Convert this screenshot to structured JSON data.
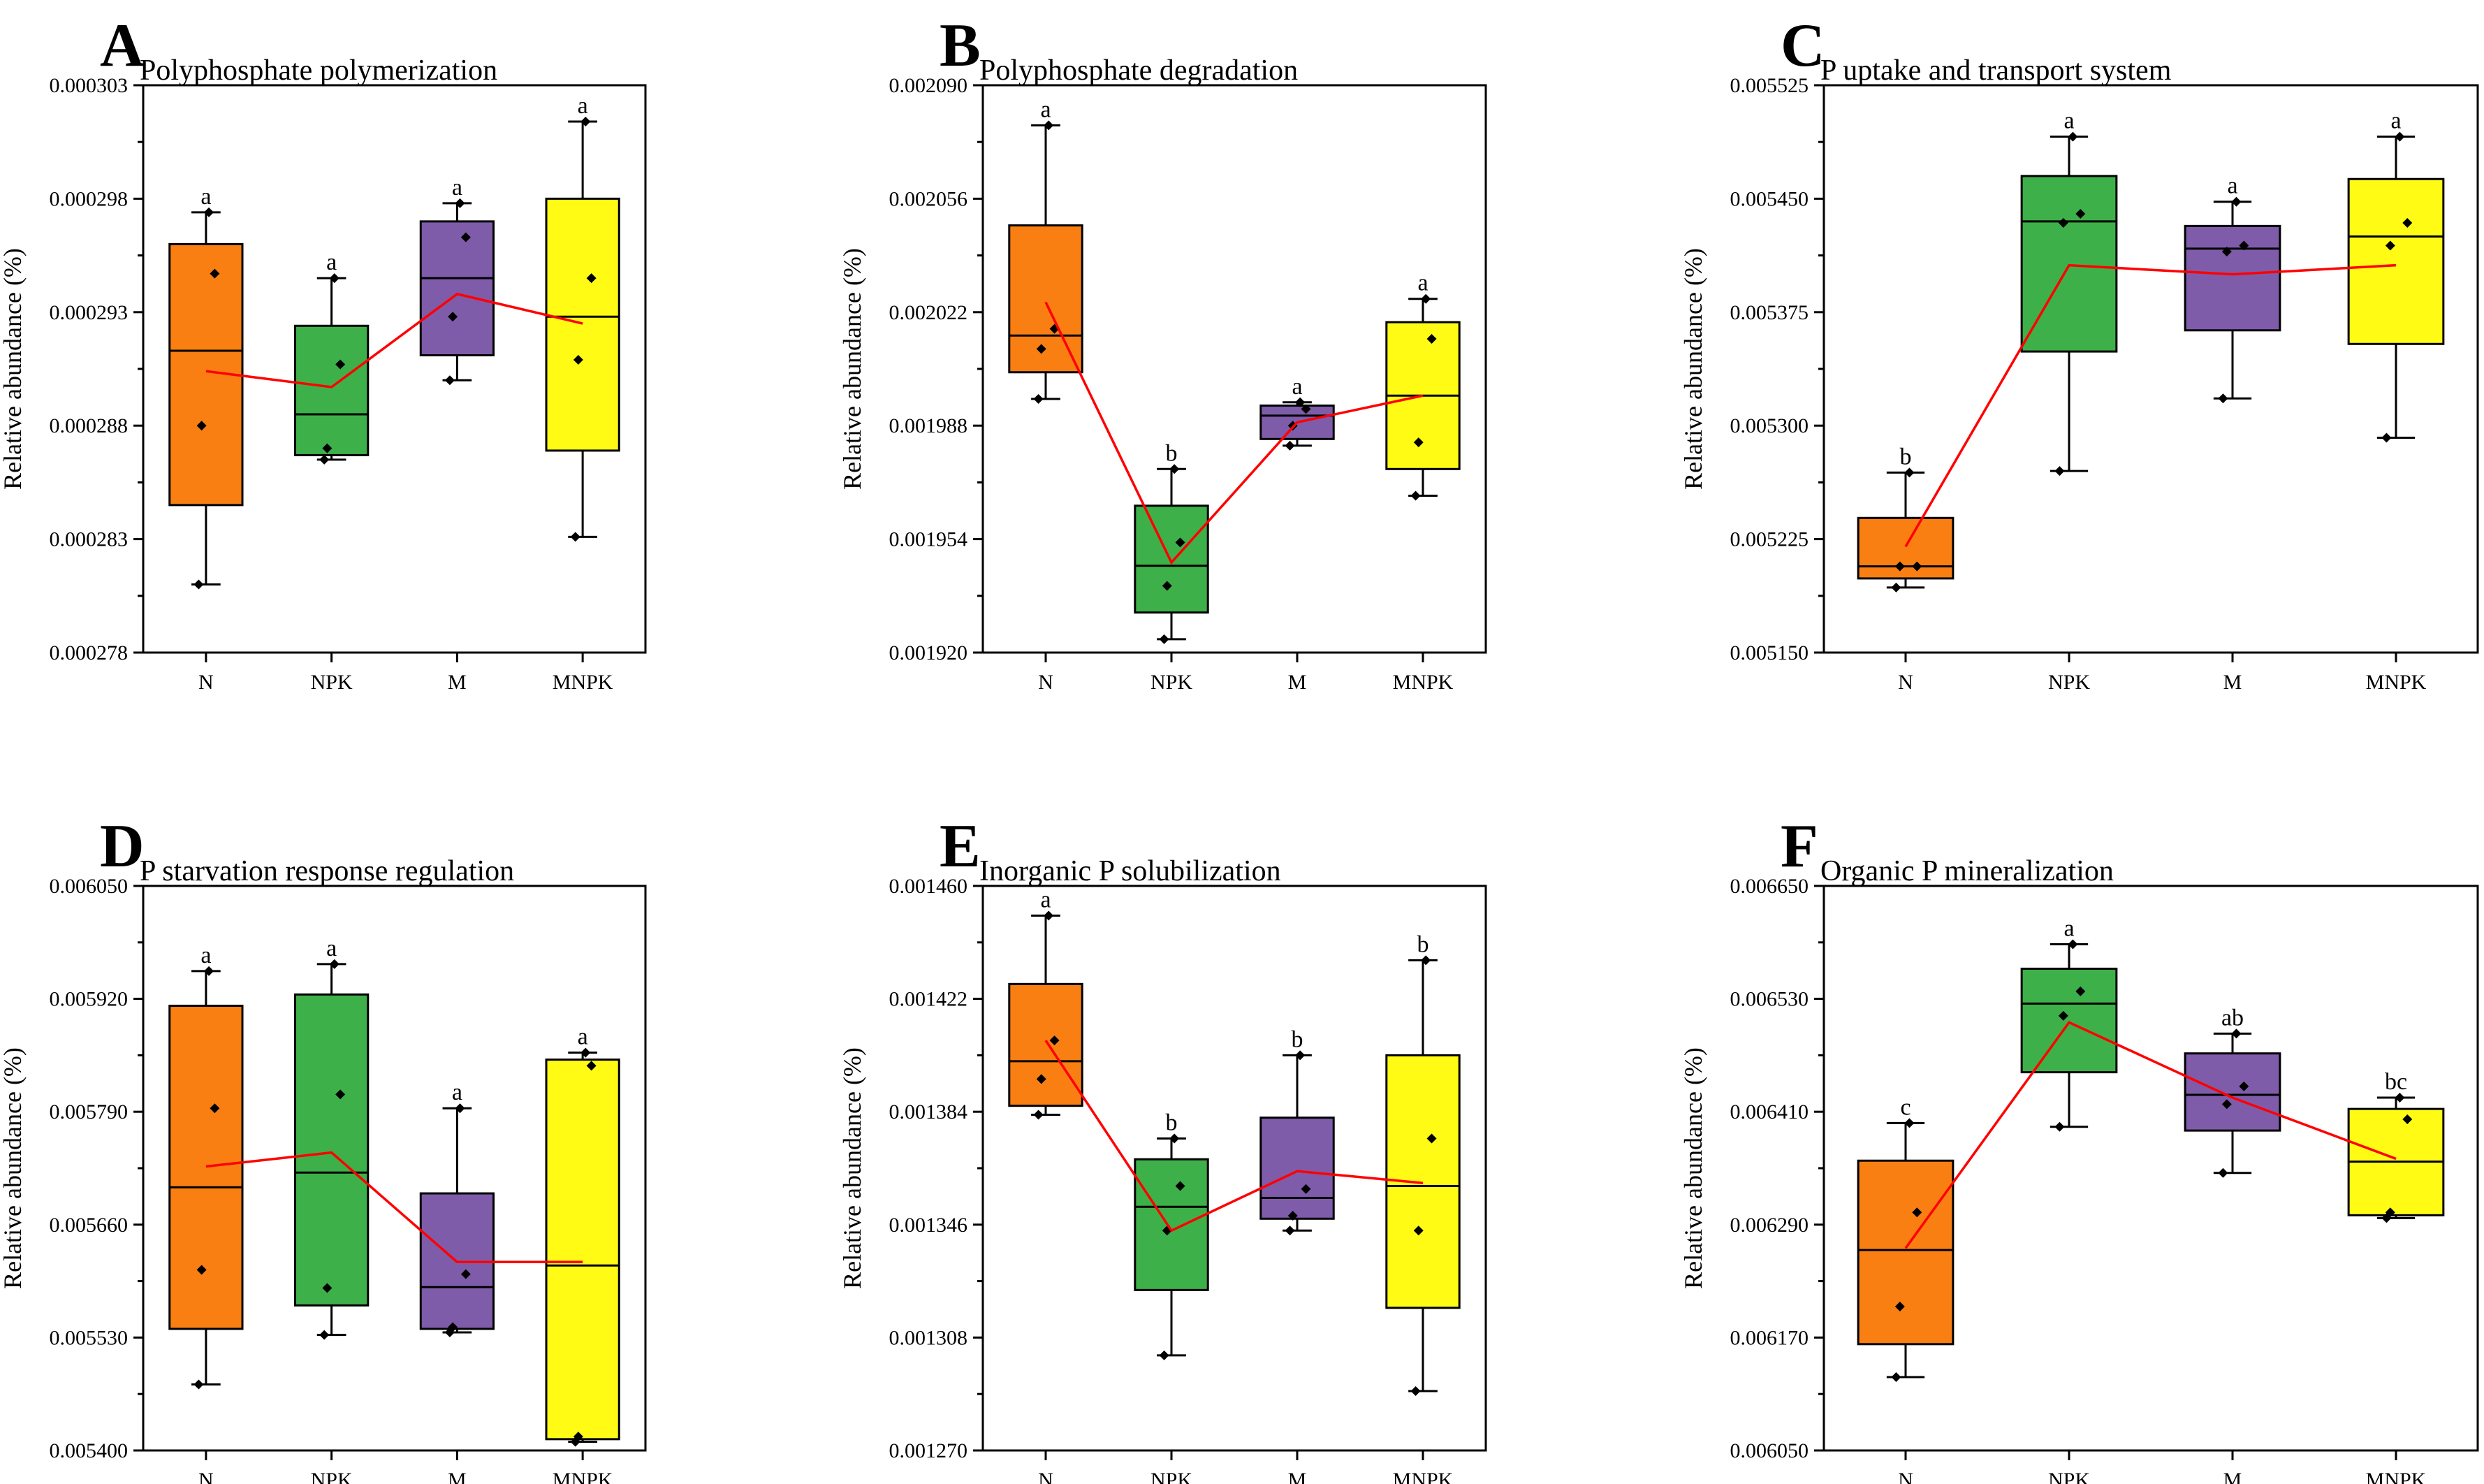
{
  "chart_data": [
    {
      "type": "box",
      "panel": "A",
      "title": "Polyphosphate polymerization",
      "ylabel": "Relative abundance (%)",
      "categories": [
        "N",
        "NPK",
        "M",
        "MNPK"
      ],
      "y_ticks": [
        "0.000278",
        "0.000283",
        "0.000288",
        "0.000293",
        "0.000298",
        "0.000303"
      ],
      "ylim": [
        0.000278,
        0.000303
      ],
      "colors": [
        "#f97f13",
        "#3eb049",
        "#7f5caa",
        "#fffb15"
      ],
      "boxes": [
        {
          "min": 0.000281,
          "q1": 0.0002845,
          "median": 0.0002913,
          "q3": 0.000296,
          "max": 0.0002974,
          "mean": 0.0002904,
          "points": [
            0.0002974,
            0.0002947,
            0.000288,
            0.000281
          ],
          "sig": "a"
        },
        {
          "min": 0.0002865,
          "q1": 0.0002867,
          "median": 0.0002885,
          "q3": 0.0002924,
          "max": 0.0002945,
          "mean": 0.0002897,
          "points": [
            0.0002945,
            0.0002907,
            0.000287,
            0.0002865
          ],
          "sig": "a"
        },
        {
          "min": 0.00029,
          "q1": 0.0002911,
          "median": 0.0002945,
          "q3": 0.000297,
          "max": 0.0002978,
          "mean": 0.0002938,
          "points": [
            0.0002978,
            0.0002963,
            0.0002928,
            0.00029
          ],
          "sig": "a"
        },
        {
          "min": 0.0002831,
          "q1": 0.0002869,
          "median": 0.0002928,
          "q3": 0.000298,
          "max": 0.0003014,
          "mean": 0.0002925,
          "points": [
            0.0003014,
            0.0002945,
            0.0002909,
            0.0002831
          ],
          "sig": "a"
        }
      ]
    },
    {
      "type": "box",
      "panel": "B",
      "title": "Polyphosphate degradation",
      "ylabel": "Relative abundance (%)",
      "categories": [
        "N",
        "NPK",
        "M",
        "MNPK"
      ],
      "y_ticks": [
        "0.001920",
        "0.001954",
        "0.001988",
        "0.002022",
        "0.002056",
        "0.002090"
      ],
      "ylim": [
        0.00192,
        0.00209
      ],
      "colors": [
        "#f97f13",
        "#3eb049",
        "#7f5caa",
        "#fffb15"
      ],
      "boxes": [
        {
          "min": 0.001996,
          "q1": 0.002004,
          "median": 0.002015,
          "q3": 0.002048,
          "max": 0.002078,
          "mean": 0.002025,
          "points": [
            0.002078,
            0.002017,
            0.002011,
            0.001996
          ],
          "sig": "a"
        },
        {
          "min": 0.001924,
          "q1": 0.001932,
          "median": 0.001946,
          "q3": 0.001964,
          "max": 0.001975,
          "mean": 0.001947,
          "points": [
            0.001975,
            0.001953,
            0.00194,
            0.001924
          ],
          "sig": "b"
        },
        {
          "min": 0.001982,
          "q1": 0.001984,
          "median": 0.001991,
          "q3": 0.001994,
          "max": 0.001995,
          "mean": 0.001989,
          "points": [
            0.001995,
            0.001993,
            0.001988,
            0.001982
          ],
          "sig": "a"
        },
        {
          "min": 0.001967,
          "q1": 0.001975,
          "median": 0.001997,
          "q3": 0.002019,
          "max": 0.002026,
          "mean": 0.001997,
          "points": [
            0.002026,
            0.002014,
            0.001983,
            0.001967
          ],
          "sig": "a"
        }
      ]
    },
    {
      "type": "box",
      "panel": "C",
      "title": "P uptake and transport system",
      "ylabel": "Relative abundance (%)",
      "categories": [
        "N",
        "NPK",
        "M",
        "MNPK"
      ],
      "y_ticks": [
        "0.005150",
        "0.005225",
        "0.005300",
        "0.005375",
        "0.005450",
        "0.005525"
      ],
      "ylim": [
        0.00515,
        0.005525
      ],
      "colors": [
        "#f97f13",
        "#3eb049",
        "#7f5caa",
        "#fffb15"
      ],
      "boxes": [
        {
          "min": 0.005193,
          "q1": 0.005199,
          "median": 0.005207,
          "q3": 0.005239,
          "max": 0.005269,
          "mean": 0.00522,
          "points": [
            0.005269,
            0.005207,
            0.005207,
            0.005193
          ],
          "sig": "b"
        },
        {
          "min": 0.00527,
          "q1": 0.005349,
          "median": 0.005435,
          "q3": 0.005465,
          "max": 0.005491,
          "mean": 0.005406,
          "points": [
            0.005491,
            0.00544,
            0.005434,
            0.00527
          ],
          "sig": "a"
        },
        {
          "min": 0.005318,
          "q1": 0.005363,
          "median": 0.005417,
          "q3": 0.005432,
          "max": 0.005448,
          "mean": 0.0054,
          "points": [
            0.005448,
            0.005419,
            0.005415,
            0.005318
          ],
          "sig": "a"
        },
        {
          "min": 0.005292,
          "q1": 0.005354,
          "median": 0.005425,
          "q3": 0.005463,
          "max": 0.005491,
          "mean": 0.005406,
          "points": [
            0.005491,
            0.005434,
            0.005419,
            0.005292
          ],
          "sig": "a"
        }
      ]
    },
    {
      "type": "box",
      "panel": "D",
      "title": "P starvation response regulation",
      "ylabel": "Relative abundance (%)",
      "categories": [
        "N",
        "NPK",
        "M",
        "MNPK"
      ],
      "y_ticks": [
        "0.005400",
        "0.005530",
        "0.005660",
        "0.005790",
        "0.005920",
        "0.006050"
      ],
      "ylim": [
        0.0054,
        0.00605
      ],
      "colors": [
        "#f97f13",
        "#3eb049",
        "#7f5caa",
        "#fffb15"
      ],
      "boxes": [
        {
          "min": 0.005476,
          "q1": 0.00554,
          "median": 0.005703,
          "q3": 0.005912,
          "max": 0.005952,
          "mean": 0.005727,
          "points": [
            0.005952,
            0.005794,
            0.005608,
            0.005476
          ],
          "sig": "a"
        },
        {
          "min": 0.005533,
          "q1": 0.005567,
          "median": 0.00572,
          "q3": 0.005925,
          "max": 0.00596,
          "mean": 0.005743,
          "points": [
            0.00596,
            0.00581,
            0.005587,
            0.005533
          ],
          "sig": "a"
        },
        {
          "min": 0.005536,
          "q1": 0.00554,
          "median": 0.005588,
          "q3": 0.005696,
          "max": 0.005794,
          "mean": 0.005617,
          "points": [
            0.005794,
            0.005603,
            0.005542,
            0.005536
          ],
          "sig": "a"
        },
        {
          "min": 0.00541,
          "q1": 0.005413,
          "median": 0.005613,
          "q3": 0.00585,
          "max": 0.005858,
          "mean": 0.005617,
          "points": [
            0.005858,
            0.005843,
            0.005416,
            0.00541
          ],
          "sig": "a"
        }
      ]
    },
    {
      "type": "box",
      "panel": "E",
      "title": "Inorganic P solubilization",
      "ylabel": "Relative abundance (%)",
      "categories": [
        "N",
        "NPK",
        "M",
        "MNPK"
      ],
      "y_ticks": [
        "0.001270",
        "0.001308",
        "0.001346",
        "0.001384",
        "0.001422",
        "0.001460"
      ],
      "ylim": [
        0.00127,
        0.00146
      ],
      "colors": [
        "#f97f13",
        "#3eb049",
        "#7f5caa",
        "#fffb15"
      ],
      "boxes": [
        {
          "min": 0.001383,
          "q1": 0.001386,
          "median": 0.001401,
          "q3": 0.001427,
          "max": 0.00145,
          "mean": 0.001408,
          "points": [
            0.00145,
            0.001408,
            0.001395,
            0.001383
          ],
          "sig": "a"
        },
        {
          "min": 0.001302,
          "q1": 0.001324,
          "median": 0.001352,
          "q3": 0.001368,
          "max": 0.001375,
          "mean": 0.001344,
          "points": [
            0.001375,
            0.001359,
            0.001344,
            0.001302
          ],
          "sig": "b"
        },
        {
          "min": 0.001344,
          "q1": 0.001348,
          "median": 0.001355,
          "q3": 0.001382,
          "max": 0.001403,
          "mean": 0.001364,
          "points": [
            0.001403,
            0.001358,
            0.001349,
            0.001344
          ],
          "sig": "b"
        },
        {
          "min": 0.00129,
          "q1": 0.001318,
          "median": 0.001359,
          "q3": 0.001403,
          "max": 0.001435,
          "mean": 0.00136,
          "points": [
            0.001435,
            0.001375,
            0.001344,
            0.00129
          ],
          "sig": "b"
        }
      ]
    },
    {
      "type": "box",
      "panel": "F",
      "title": "Organic P mineralization",
      "ylabel": "Relative abundance (%)",
      "categories": [
        "N",
        "NPK",
        "M",
        "MNPK"
      ],
      "y_ticks": [
        "0.006050",
        "0.006170",
        "0.006290",
        "0.006410",
        "0.006530",
        "0.006650"
      ],
      "ylim": [
        0.00605,
        0.00665
      ],
      "colors": [
        "#f97f13",
        "#3eb049",
        "#7f5caa",
        "#fffb15"
      ],
      "boxes": [
        {
          "min": 0.006128,
          "q1": 0.006163,
          "median": 0.006263,
          "q3": 0.006358,
          "max": 0.006398,
          "mean": 0.006265,
          "points": [
            0.006398,
            0.006303,
            0.006203,
            0.006128
          ],
          "sig": "c"
        },
        {
          "min": 0.006394,
          "q1": 0.006452,
          "median": 0.006525,
          "q3": 0.006562,
          "max": 0.006588,
          "mean": 0.006505,
          "points": [
            0.006588,
            0.006538,
            0.006512,
            0.006394
          ],
          "sig": "a"
        },
        {
          "min": 0.006345,
          "q1": 0.00639,
          "median": 0.006428,
          "q3": 0.006472,
          "max": 0.006493,
          "mean": 0.006425,
          "points": [
            0.006493,
            0.006437,
            0.006418,
            0.006345
          ],
          "sig": "ab"
        },
        {
          "min": 0.006297,
          "q1": 0.0063,
          "median": 0.006357,
          "q3": 0.006413,
          "max": 0.006425,
          "mean": 0.00636,
          "points": [
            0.006425,
            0.006402,
            0.006303,
            0.006297
          ],
          "sig": "bc"
        }
      ]
    }
  ]
}
